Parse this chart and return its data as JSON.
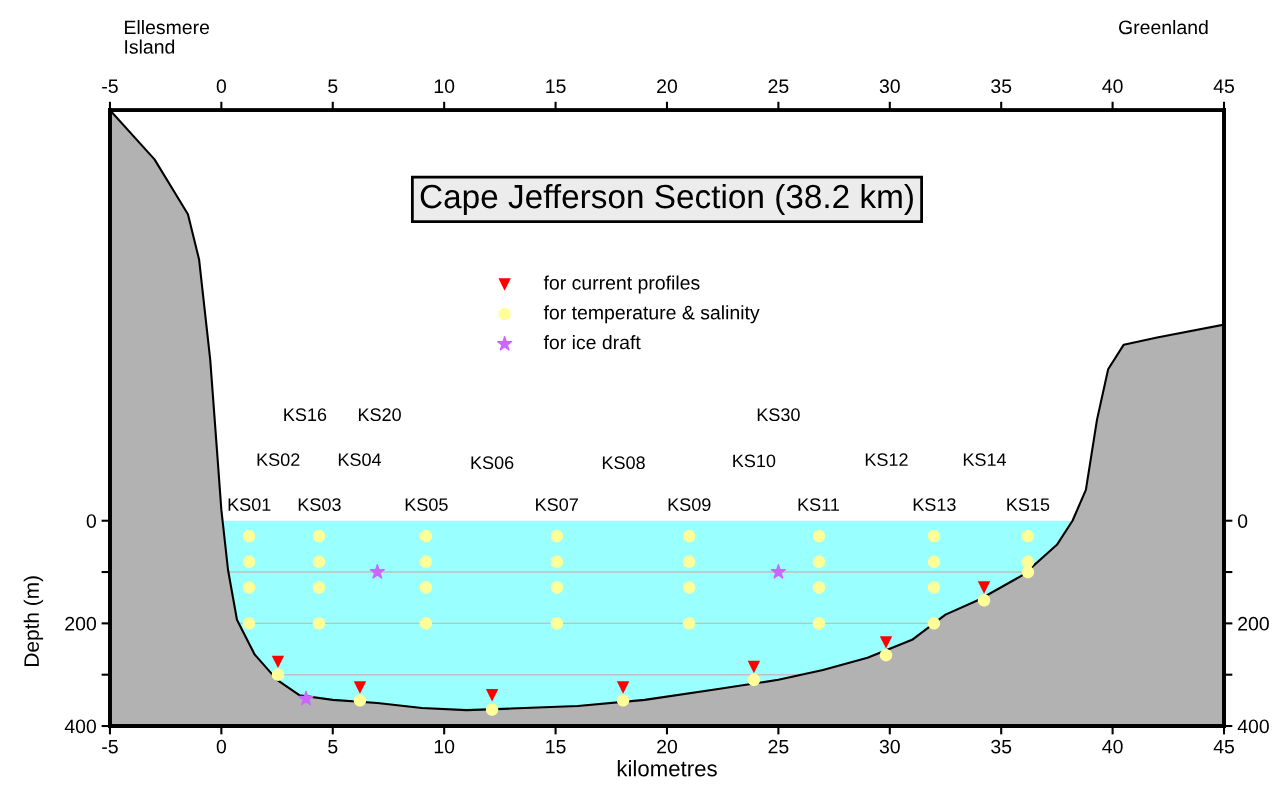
{
  "chart_data": {
    "type": "scatter",
    "title": "Cape Jefferson Section (38.2 km)",
    "xlabel": "kilometres",
    "ylabel": "Depth (m)",
    "xlim": [
      -5,
      45
    ],
    "xticks": [
      -5,
      0,
      5,
      10,
      15,
      20,
      25,
      30,
      35,
      40,
      45
    ],
    "x2lim": [
      -5,
      45
    ],
    "x2ticks": [
      -5,
      0,
      5,
      10,
      15,
      20,
      25,
      30,
      35,
      40,
      45
    ],
    "ylim": [
      400,
      -800
    ],
    "yticks": [
      0,
      {
        "value": 100,
        "label": null
      },
      200,
      {
        "value": 300,
        "label": null
      },
      400
    ],
    "y2lim": [
      400,
      -800
    ],
    "y2ticks": [
      0,
      {
        "value": 100,
        "label": null
      },
      200,
      {
        "value": 300,
        "label": null
      },
      400
    ],
    "grid": false,
    "legend": "top",
    "bands": [
      {
        "axis": "y",
        "from": 0,
        "to": 400,
        "color": "#99ffff"
      }
    ],
    "ref_lines": [
      {
        "axis": "y",
        "value": 100,
        "color": "#c0c0c0"
      },
      {
        "axis": "y",
        "value": 200,
        "color": "#c0c0c0"
      },
      {
        "axis": "y",
        "value": 300,
        "color": "#c0c0c0"
      }
    ],
    "series": [
      {
        "type": "line",
        "color": "#000000",
        "x": [
          -5,
          -3,
          -1.5,
          -1,
          -0.5,
          -0.2,
          0,
          0.3,
          0.7,
          1.5,
          2.5,
          3.5,
          5,
          7,
          9,
          11,
          13,
          16,
          19,
          22,
          25,
          27,
          29,
          31,
          32.5,
          34,
          36,
          37.5,
          38.2,
          38.8,
          39.3,
          39.8,
          40.5,
          42,
          45
        ],
        "values": [
          -800,
          -704,
          -597,
          -509,
          -314,
          -139,
          -21,
          96,
          193,
          261,
          310,
          340,
          349,
          355,
          365,
          369,
          366,
          361,
          349,
          330,
          310,
          291,
          267,
          232,
          183,
          154,
          105,
          47,
          0,
          -60,
          -197,
          -295,
          -343,
          -357,
          -382
        ],
        "lower": [
          -800,
          -704,
          -597,
          -509,
          -314,
          -139,
          -21,
          96,
          193,
          261,
          310,
          340,
          349,
          355,
          365,
          369,
          366,
          361,
          349,
          330,
          310,
          291,
          267,
          232,
          183,
          154,
          105,
          47,
          0,
          -60,
          -197,
          -295,
          -343,
          -357,
          -382
        ],
        "upper": [
          400,
          400,
          400,
          400,
          400,
          400,
          400,
          400,
          400,
          400,
          400,
          400,
          400,
          400,
          400,
          400,
          400,
          400,
          400,
          400,
          400,
          400,
          400,
          400,
          400,
          400,
          400,
          400,
          400,
          400,
          400,
          400,
          400,
          400,
          400
        ]
      },
      {
        "name": "for current profiles",
        "color": "#ff0000",
        "marker": "triangle",
        "x": [
          2.54,
          6.22,
          12.15,
          18.03,
          23.9,
          29.83,
          34.23
        ],
        "values": [
          275,
          325,
          340,
          325,
          285,
          237,
          130
        ]
      },
      {
        "name": "for temperature & salinity",
        "color": "#ffff99",
        "marker": "circle",
        "x": [
          1.24,
          1.24,
          1.24,
          1.24,
          4.38,
          4.38,
          4.38,
          4.38,
          9.18,
          9.18,
          9.18,
          9.18,
          15.06,
          15.06,
          15.06,
          15.06,
          20.99,
          20.99,
          20.99,
          20.99,
          26.82,
          26.82,
          26.82,
          26.82,
          31.98,
          31.98,
          31.98,
          31.98,
          36.2,
          36.2,
          36.2,
          2.54,
          6.22,
          12.15,
          18.03,
          23.9,
          29.83,
          34.23
        ],
        "values": [
          30,
          80,
          130,
          200,
          30,
          80,
          130,
          200,
          30,
          80,
          130,
          200,
          30,
          80,
          130,
          200,
          30,
          80,
          130,
          200,
          30,
          80,
          130,
          200,
          30,
          80,
          130,
          200,
          30,
          80,
          100,
          300,
          350,
          368,
          350,
          310,
          262,
          155
        ]
      },
      {
        "name": "for ice draft",
        "color": "#cc66ff",
        "marker": "star",
        "x": [
          7.0,
          25.0,
          3.8
        ],
        "values": [
          100,
          100,
          347
        ]
      }
    ],
    "annotations": [
      "Ellesmere Island",
      "Greenland",
      "KS01",
      "KS03",
      "KS05",
      "KS07",
      "KS09",
      "KS11",
      "KS13",
      "KS15",
      "KS02",
      "KS04",
      "KS06",
      "KS08",
      "KS10",
      "KS12",
      "KS14",
      "KS16",
      "KS20",
      "KS30"
    ]
  }
}
